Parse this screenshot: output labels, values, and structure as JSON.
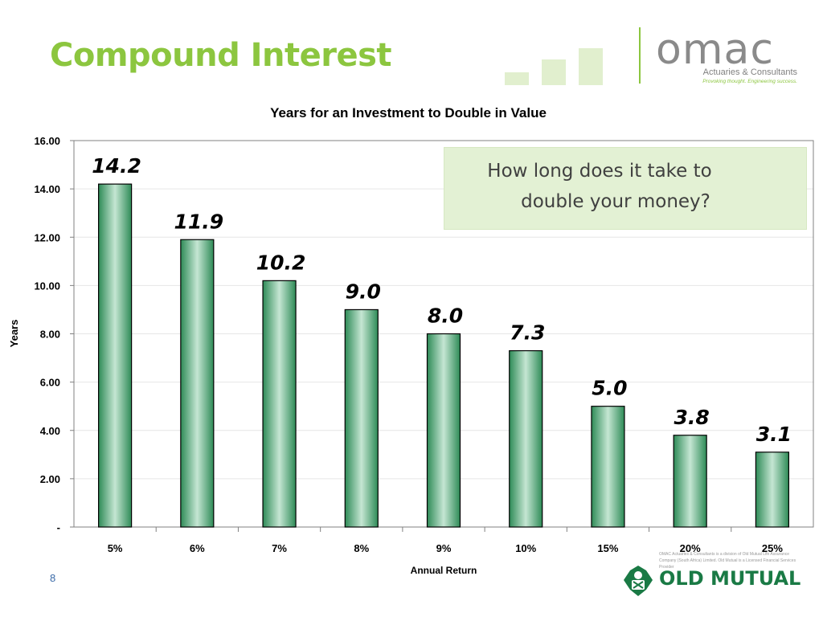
{
  "slide": {
    "title": "Compound Interest",
    "page_number": "8"
  },
  "branding": {
    "omac_wordmark": "omac",
    "omac_tagline": "Actuaries & Consultants",
    "omac_slogan": "Provoking thought. Engineering success.",
    "old_mutual_name": "OLD MUTUAL",
    "old_mutual_disclaimer": "OMAC Actuaries & Consultants is a division of Old Mutual Life Assurance Company (South Africa) Limited. Old Mutual is a Licensed Financial Services Provider",
    "accent_green": "#8cc63f",
    "old_mutual_green": "#1a7a45"
  },
  "callout": {
    "line1": "How long does it take to",
    "line2": "double your money?"
  },
  "chart_data": {
    "type": "bar",
    "title": "Years for an Investment to Double in Value",
    "xlabel": "Annual Return",
    "ylabel": "Years",
    "categories": [
      "5%",
      "6%",
      "7%",
      "8%",
      "9%",
      "10%",
      "15%",
      "20%",
      "25%"
    ],
    "values": [
      14.2,
      11.9,
      10.2,
      9.0,
      8.0,
      7.3,
      5.0,
      3.8,
      3.1
    ],
    "data_labels": [
      "14.2",
      "11.9",
      "10.2",
      "9.0",
      "8.0",
      "7.3",
      "5.0",
      "3.8",
      "3.1"
    ],
    "ylim": [
      0,
      16
    ],
    "yticks": [
      0,
      2,
      4,
      6,
      8,
      10,
      12,
      14,
      16
    ],
    "ytick_labels": [
      "-",
      "2.00",
      "4.00",
      "6.00",
      "8.00",
      "10.00",
      "12.00",
      "14.00",
      "16.00"
    ],
    "grid": true,
    "legend": "none",
    "bar_color_dark": "#2e8b57",
    "bar_color_light": "#c5e6d3"
  }
}
